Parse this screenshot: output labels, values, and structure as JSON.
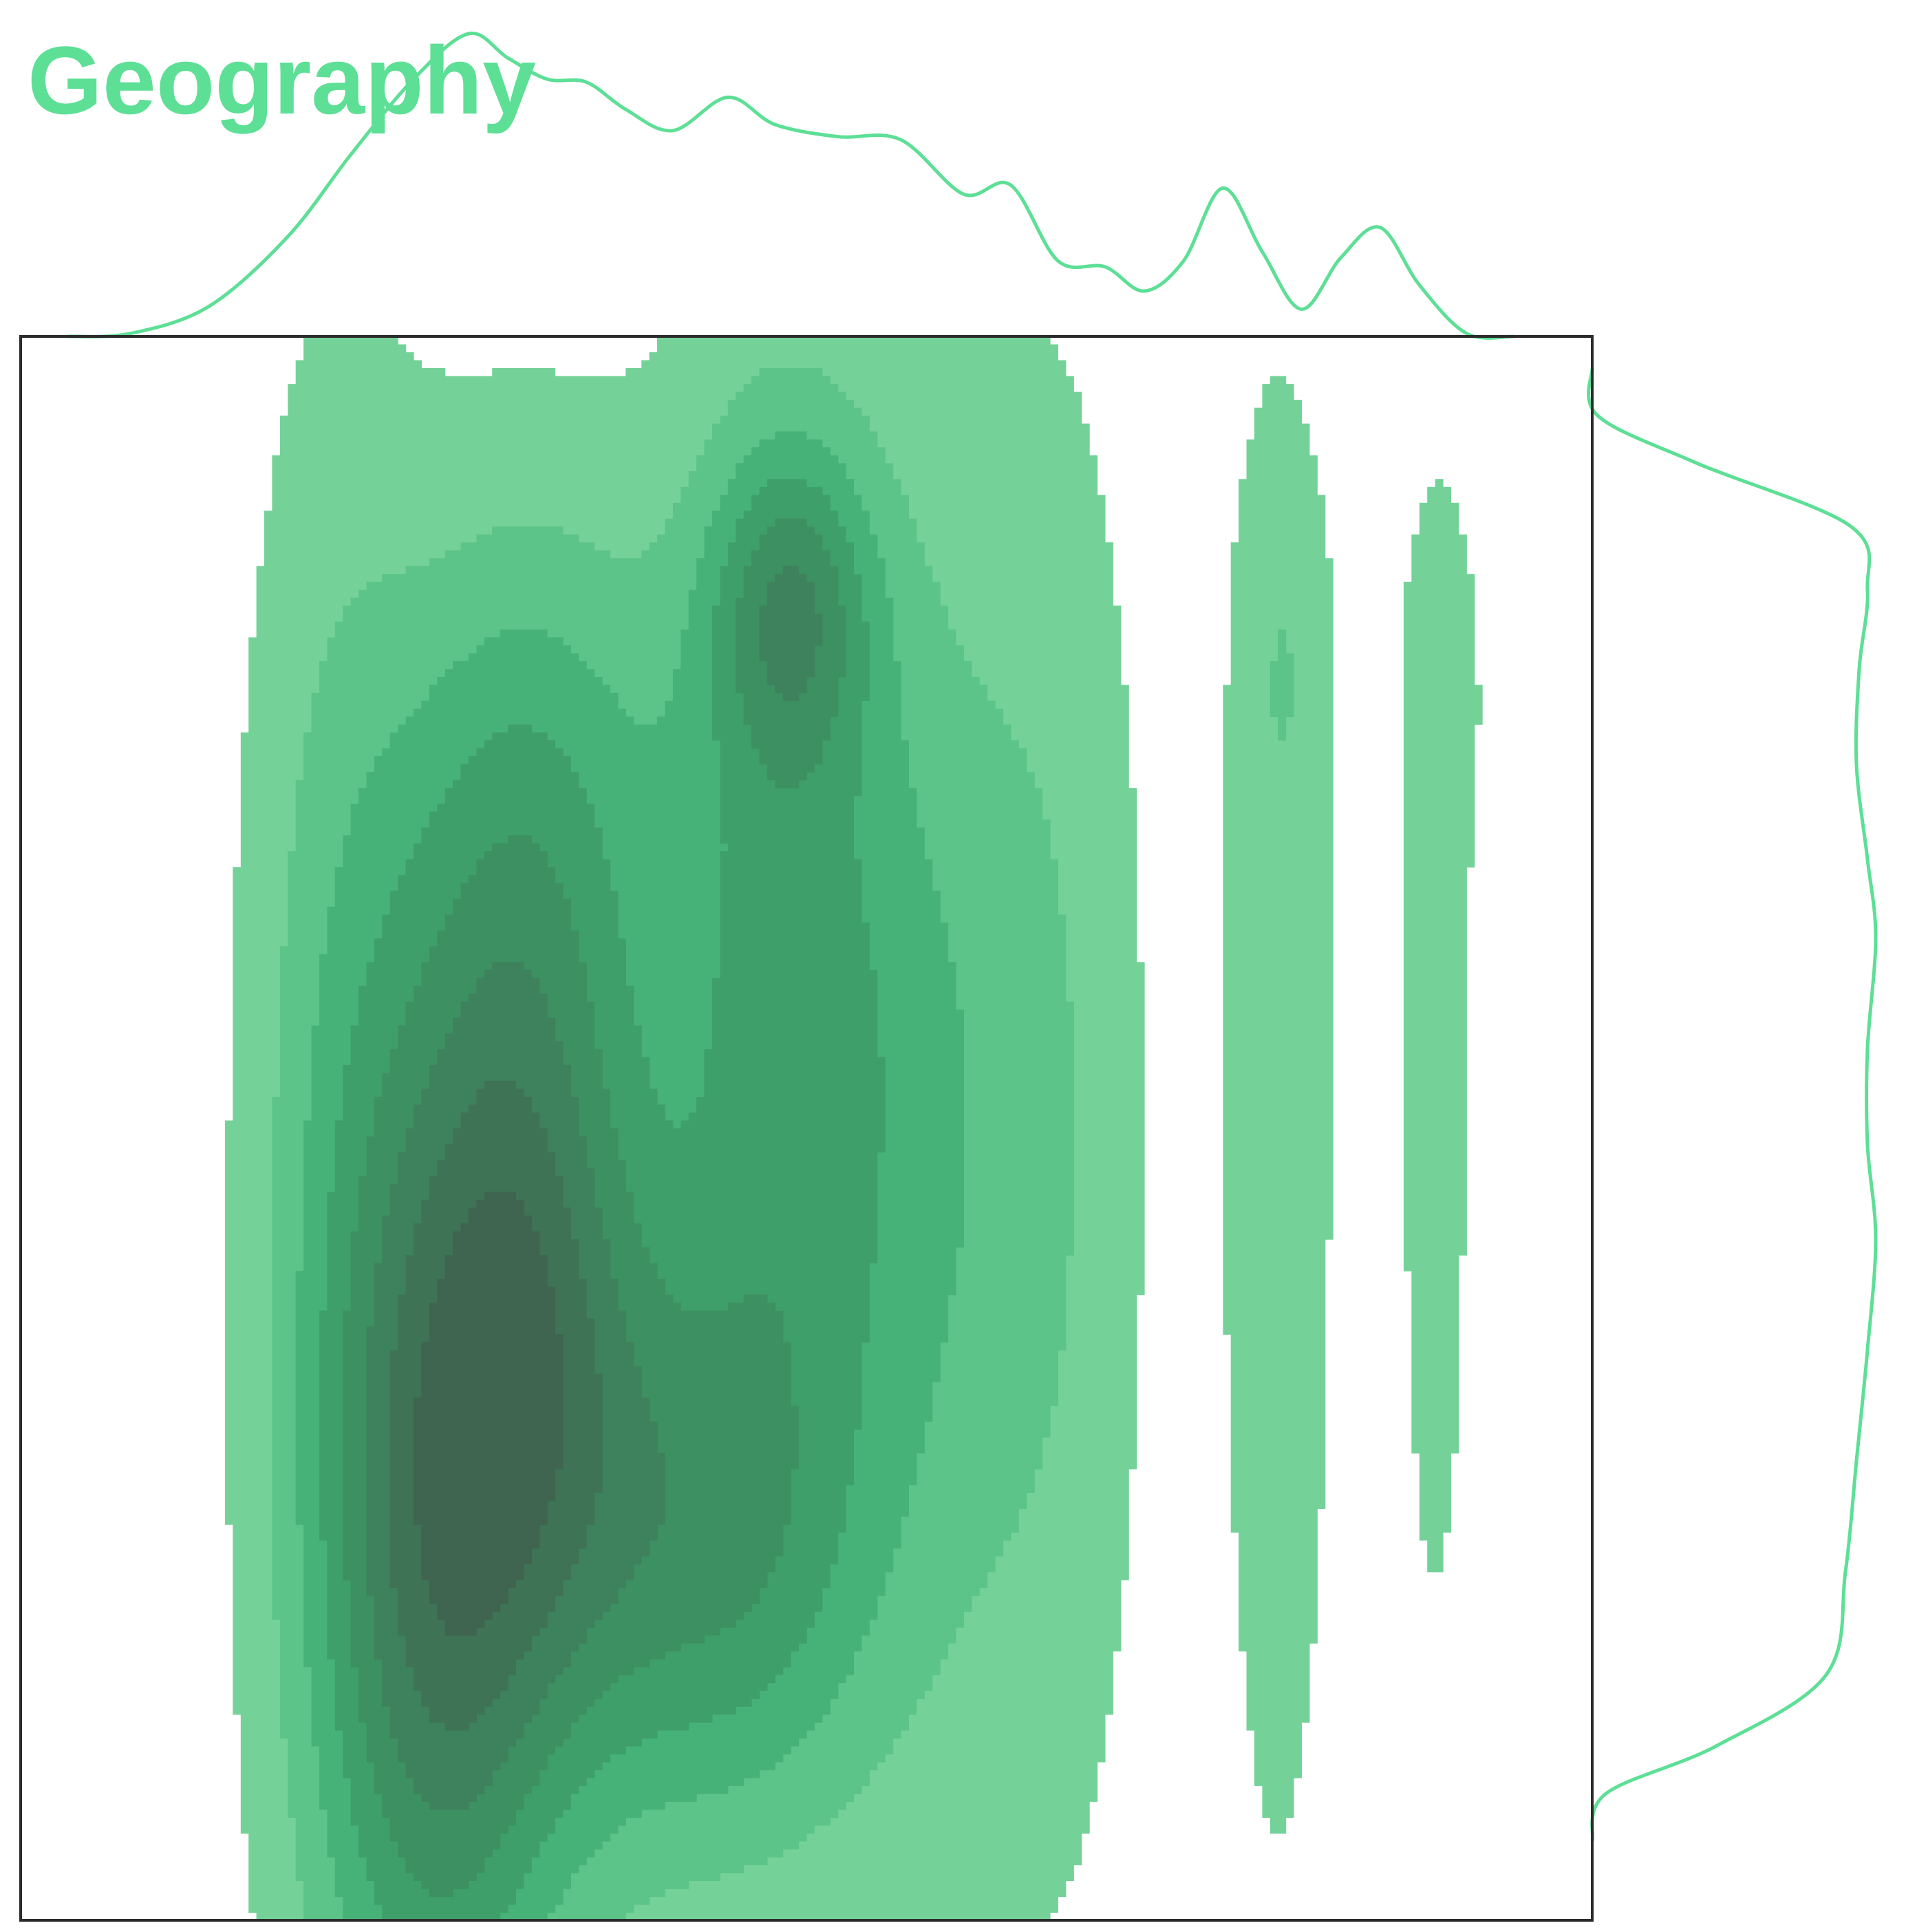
{
  "chart_data": {
    "type": "kde-joint",
    "title": "Geography",
    "xlabel": "",
    "ylabel": "",
    "grid": false,
    "legend": "none",
    "colors": {
      "accent": "#5ddf96",
      "levels": [
        "#74d299",
        "#5cc488",
        "#47b277",
        "#3e9f6a",
        "#3d9062",
        "#3d825c",
        "#3e7356",
        "#3f6450"
      ],
      "frame": "#2b2b2b"
    },
    "contour_levels": 8,
    "joint_density": [
      {
        "x": 0.265,
        "y": 0.245,
        "sx": 0.052,
        "sy": 0.25,
        "w": 1.0
      },
      {
        "x": 0.33,
        "y": 0.42,
        "sx": 0.05,
        "sy": 0.2,
        "w": 0.65
      },
      {
        "x": 0.385,
        "y": 0.26,
        "sx": 0.06,
        "sy": 0.16,
        "w": 0.45
      },
      {
        "x": 0.48,
        "y": 0.58,
        "sx": 0.05,
        "sy": 0.26,
        "w": 0.55
      },
      {
        "x": 0.49,
        "y": 0.83,
        "sx": 0.035,
        "sy": 0.07,
        "w": 0.55
      },
      {
        "x": 0.46,
        "y": 0.22,
        "sx": 0.06,
        "sy": 0.12,
        "w": 0.35
      },
      {
        "x": 0.57,
        "y": 0.5,
        "sx": 0.055,
        "sy": 0.28,
        "w": 0.38
      },
      {
        "x": 0.33,
        "y": 0.72,
        "sx": 0.07,
        "sy": 0.14,
        "w": 0.35
      },
      {
        "x": 0.2,
        "y": 0.5,
        "sx": 0.04,
        "sy": 0.34,
        "w": 0.25
      },
      {
        "x": 0.66,
        "y": 0.5,
        "sx": 0.04,
        "sy": 0.34,
        "w": 0.18
      },
      {
        "x": 0.8,
        "y": 0.5,
        "sx": 0.025,
        "sy": 0.34,
        "w": 0.2
      },
      {
        "x": 0.805,
        "y": 0.8,
        "sx": 0.02,
        "sy": 0.08,
        "w": 0.12
      },
      {
        "x": 0.9,
        "y": 0.5,
        "sx": 0.022,
        "sy": 0.34,
        "w": 0.12
      },
      {
        "x": 0.905,
        "y": 0.78,
        "sx": 0.018,
        "sy": 0.08,
        "w": 0.1
      }
    ],
    "x_marginal": [
      {
        "x": 0.03,
        "d": 0.0
      },
      {
        "x": 0.07,
        "d": 0.01
      },
      {
        "x": 0.12,
        "d": 0.1
      },
      {
        "x": 0.17,
        "d": 0.33
      },
      {
        "x": 0.21,
        "d": 0.6
      },
      {
        "x": 0.25,
        "d": 0.85
      },
      {
        "x": 0.285,
        "d": 1.0
      },
      {
        "x": 0.31,
        "d": 0.92
      },
      {
        "x": 0.335,
        "d": 0.85
      },
      {
        "x": 0.36,
        "d": 0.84
      },
      {
        "x": 0.385,
        "d": 0.75
      },
      {
        "x": 0.415,
        "d": 0.68
      },
      {
        "x": 0.45,
        "d": 0.79
      },
      {
        "x": 0.48,
        "d": 0.7
      },
      {
        "x": 0.52,
        "d": 0.66
      },
      {
        "x": 0.56,
        "d": 0.65
      },
      {
        "x": 0.6,
        "d": 0.47
      },
      {
        "x": 0.63,
        "d": 0.5
      },
      {
        "x": 0.66,
        "d": 0.25
      },
      {
        "x": 0.69,
        "d": 0.23
      },
      {
        "x": 0.715,
        "d": 0.15
      },
      {
        "x": 0.74,
        "d": 0.25
      },
      {
        "x": 0.765,
        "d": 0.49
      },
      {
        "x": 0.79,
        "d": 0.28
      },
      {
        "x": 0.815,
        "d": 0.09
      },
      {
        "x": 0.84,
        "d": 0.26
      },
      {
        "x": 0.865,
        "d": 0.36
      },
      {
        "x": 0.89,
        "d": 0.17
      },
      {
        "x": 0.92,
        "d": 0.01
      },
      {
        "x": 0.95,
        "d": 0.0
      }
    ],
    "y_marginal": [
      {
        "y": 0.98,
        "d": 0.0
      },
      {
        "y": 0.95,
        "d": 0.02
      },
      {
        "y": 0.92,
        "d": 0.38
      },
      {
        "y": 0.88,
        "d": 0.94
      },
      {
        "y": 0.84,
        "d": 1.0
      },
      {
        "y": 0.79,
        "d": 0.97
      },
      {
        "y": 0.73,
        "d": 0.96
      },
      {
        "y": 0.67,
        "d": 1.0
      },
      {
        "y": 0.62,
        "d": 1.03
      },
      {
        "y": 0.55,
        "d": 1.0
      },
      {
        "y": 0.49,
        "d": 1.0
      },
      {
        "y": 0.43,
        "d": 1.03
      },
      {
        "y": 0.36,
        "d": 1.0
      },
      {
        "y": 0.29,
        "d": 0.96
      },
      {
        "y": 0.22,
        "d": 0.92
      },
      {
        "y": 0.155,
        "d": 0.85
      },
      {
        "y": 0.11,
        "d": 0.45
      },
      {
        "y": 0.08,
        "d": 0.05
      },
      {
        "y": 0.05,
        "d": 0.0
      }
    ]
  }
}
